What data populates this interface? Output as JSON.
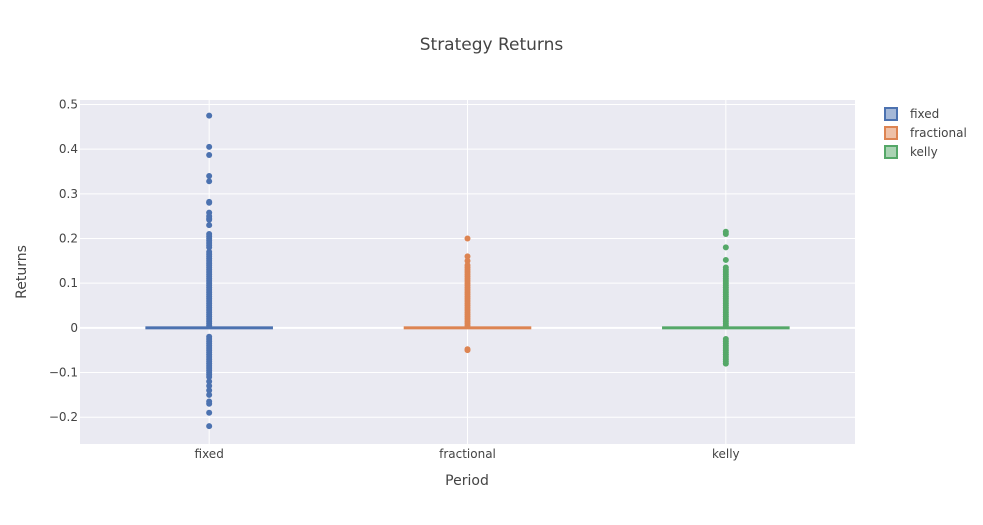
{
  "chart_data": {
    "type": "box",
    "title": "Strategy Returns",
    "xlabel": "Period",
    "ylabel": "Returns",
    "ylim": [
      -0.26,
      0.51
    ],
    "yticks": [
      -0.2,
      -0.1,
      0,
      0.1,
      0.2,
      0.3,
      0.4,
      0.5
    ],
    "ytick_labels": [
      "−0.2",
      "−0.1",
      "0",
      "0.1",
      "0.2",
      "0.3",
      "0.4",
      "0.5"
    ],
    "categories": [
      "fixed",
      "fractional",
      "kelly"
    ],
    "grid": true,
    "legend_position": "top-right",
    "series": [
      {
        "name": "fixed",
        "color": "#4c72b0",
        "median": 0,
        "q1": 0,
        "q3": 0,
        "outliers": [
          0.475,
          0.405,
          0.387,
          0.34,
          0.328,
          0.282,
          0.28,
          0.258,
          0.25,
          0.245,
          0.242,
          0.23,
          0.21,
          0.205,
          0.2,
          0.195,
          0.19,
          0.185,
          0.18,
          0.17,
          0.165,
          0.16,
          0.155,
          0.15,
          0.145,
          0.14,
          0.135,
          0.13,
          0.125,
          0.12,
          0.115,
          0.11,
          0.105,
          0.1,
          0.095,
          0.09,
          0.085,
          0.08,
          0.075,
          0.07,
          0.065,
          0.06,
          0.055,
          0.05,
          0.045,
          0.04,
          0.035,
          0.03,
          0.025,
          0.02,
          0.015,
          0.01,
          0.005,
          -0.02,
          -0.025,
          -0.03,
          -0.035,
          -0.04,
          -0.045,
          -0.05,
          -0.055,
          -0.06,
          -0.065,
          -0.07,
          -0.075,
          -0.08,
          -0.085,
          -0.09,
          -0.095,
          -0.1,
          -0.105,
          -0.11,
          -0.12,
          -0.13,
          -0.14,
          -0.15,
          -0.165,
          -0.17,
          -0.19,
          -0.22
        ]
      },
      {
        "name": "fractional",
        "color": "#dd8452",
        "median": 0,
        "q1": 0,
        "q3": 0,
        "outliers": [
          0.2,
          0.16,
          0.15,
          0.14,
          0.135,
          0.13,
          0.125,
          0.12,
          0.115,
          0.11,
          0.105,
          0.1,
          0.095,
          0.09,
          0.085,
          0.08,
          0.075,
          0.07,
          0.065,
          0.06,
          0.055,
          0.05,
          0.045,
          0.04,
          0.035,
          0.03,
          0.025,
          0.02,
          0.015,
          0.01,
          0.005,
          -0.048,
          -0.05
        ]
      },
      {
        "name": "kelly",
        "color": "#55a868",
        "median": 0,
        "q1": 0,
        "q3": 0,
        "outliers": [
          0.215,
          0.21,
          0.18,
          0.152,
          0.135,
          0.13,
          0.125,
          0.12,
          0.115,
          0.11,
          0.105,
          0.1,
          0.095,
          0.09,
          0.085,
          0.08,
          0.075,
          0.07,
          0.065,
          0.06,
          0.055,
          0.05,
          0.045,
          0.04,
          0.035,
          0.03,
          0.025,
          0.02,
          0.015,
          0.01,
          0.005,
          -0.025,
          -0.03,
          -0.035,
          -0.04,
          -0.045,
          -0.05,
          -0.055,
          -0.06,
          -0.065,
          -0.07,
          -0.075,
          -0.08
        ]
      }
    ]
  }
}
